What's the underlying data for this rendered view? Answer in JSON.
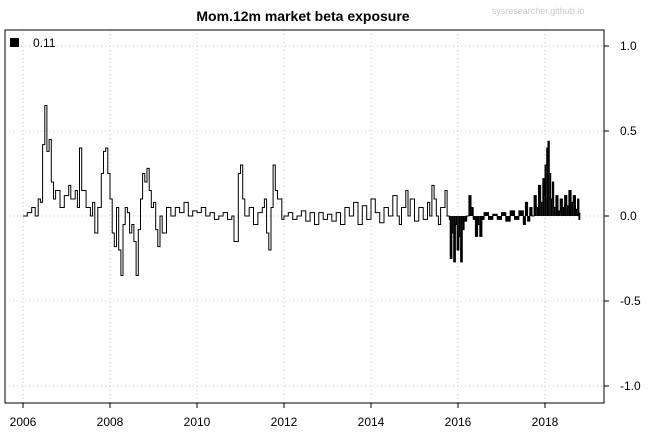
{
  "watermark": "sysresearcher.github.io",
  "chart_data": {
    "type": "line",
    "title": "Mom.12m market beta exposure",
    "xlabel": "",
    "ylabel": "",
    "xlim": [
      2006.0,
      2018.83
    ],
    "ylim": [
      -1.0,
      1.0
    ],
    "x_ticks": [
      2006,
      2008,
      2010,
      2012,
      2014,
      2016,
      2018
    ],
    "x_tick_labels": [
      "2006",
      "2008",
      "2010",
      "2012",
      "2014",
      "2016",
      "2018"
    ],
    "y_ticks": [
      -1.0,
      -0.5,
      0.0,
      0.5,
      1.0
    ],
    "y_tick_labels": [
      "-1.0",
      "-0.5",
      "0.0",
      "0.5",
      "1.0"
    ],
    "y_axis_side": "right",
    "grid": "dotted",
    "legend": {
      "position": "top-left",
      "entries": [
        "0.11"
      ]
    },
    "series": [
      {
        "name": "0.11",
        "style": "step",
        "points": [
          [
            2006.0,
            0.0
          ],
          [
            2006.1,
            0.02
          ],
          [
            2006.2,
            0.05
          ],
          [
            2006.28,
            0.0
          ],
          [
            2006.35,
            0.1
          ],
          [
            2006.4,
            0.08
          ],
          [
            2006.45,
            0.42
          ],
          [
            2006.5,
            0.65
          ],
          [
            2006.55,
            0.38
          ],
          [
            2006.6,
            0.45
          ],
          [
            2006.65,
            0.2
          ],
          [
            2006.7,
            0.1
          ],
          [
            2006.75,
            0.15
          ],
          [
            2006.85,
            0.05
          ],
          [
            2006.95,
            0.12
          ],
          [
            2007.05,
            0.18
          ],
          [
            2007.1,
            0.1
          ],
          [
            2007.2,
            0.15
          ],
          [
            2007.25,
            0.05
          ],
          [
            2007.3,
            0.4
          ],
          [
            2007.35,
            0.15
          ],
          [
            2007.45,
            0.05
          ],
          [
            2007.55,
            0.0
          ],
          [
            2007.6,
            0.08
          ],
          [
            2007.65,
            -0.1
          ],
          [
            2007.72,
            0.05
          ],
          [
            2007.8,
            0.25
          ],
          [
            2007.85,
            0.38
          ],
          [
            2007.9,
            0.4
          ],
          [
            2007.95,
            0.25
          ],
          [
            2008.0,
            0.1
          ],
          [
            2008.05,
            -0.1
          ],
          [
            2008.1,
            -0.18
          ],
          [
            2008.15,
            0.05
          ],
          [
            2008.2,
            -0.2
          ],
          [
            2008.25,
            -0.35
          ],
          [
            2008.3,
            -0.05
          ],
          [
            2008.35,
            0.05
          ],
          [
            2008.4,
            0.02
          ],
          [
            2008.45,
            -0.1
          ],
          [
            2008.5,
            -0.05
          ],
          [
            2008.55,
            -0.15
          ],
          [
            2008.6,
            -0.35
          ],
          [
            2008.65,
            -0.08
          ],
          [
            2008.7,
            0.1
          ],
          [
            2008.75,
            0.25
          ],
          [
            2008.8,
            0.2
          ],
          [
            2008.85,
            0.28
          ],
          [
            2008.9,
            0.15
          ],
          [
            2008.95,
            0.05
          ],
          [
            2009.0,
            0.08
          ],
          [
            2009.05,
            -0.08
          ],
          [
            2009.1,
            -0.18
          ],
          [
            2009.15,
            0.0
          ],
          [
            2009.2,
            -0.1
          ],
          [
            2009.3,
            0.05
          ],
          [
            2009.4,
            0.0
          ],
          [
            2009.5,
            0.05
          ],
          [
            2009.6,
            0.02
          ],
          [
            2009.7,
            0.08
          ],
          [
            2009.8,
            0.0
          ],
          [
            2009.9,
            0.03
          ],
          [
            2010.0,
            0.02
          ],
          [
            2010.1,
            0.05
          ],
          [
            2010.2,
            0.0
          ],
          [
            2010.3,
            0.02
          ],
          [
            2010.4,
            -0.02
          ],
          [
            2010.5,
            0.0
          ],
          [
            2010.6,
            0.02
          ],
          [
            2010.7,
            -0.02
          ],
          [
            2010.8,
            0.0
          ],
          [
            2010.85,
            -0.15
          ],
          [
            2010.95,
            0.25
          ],
          [
            2011.0,
            0.3
          ],
          [
            2011.05,
            0.1
          ],
          [
            2011.1,
            0.0
          ],
          [
            2011.2,
            0.05
          ],
          [
            2011.3,
            -0.05
          ],
          [
            2011.4,
            0.02
          ],
          [
            2011.5,
            0.05
          ],
          [
            2011.55,
            0.1
          ],
          [
            2011.6,
            -0.1
          ],
          [
            2011.65,
            -0.2
          ],
          [
            2011.7,
            0.05
          ],
          [
            2011.75,
            0.3
          ],
          [
            2011.8,
            0.15
          ],
          [
            2011.85,
            0.1
          ],
          [
            2011.95,
            -0.02
          ],
          [
            2012.0,
            0.0
          ],
          [
            2012.1,
            0.02
          ],
          [
            2012.2,
            -0.02
          ],
          [
            2012.3,
            0.0
          ],
          [
            2012.4,
            0.03
          ],
          [
            2012.5,
            -0.03
          ],
          [
            2012.6,
            0.02
          ],
          [
            2012.7,
            -0.05
          ],
          [
            2012.8,
            0.02
          ],
          [
            2012.9,
            -0.02
          ],
          [
            2013.0,
            0.01
          ],
          [
            2013.1,
            -0.03
          ],
          [
            2013.2,
            0.02
          ],
          [
            2013.3,
            -0.05
          ],
          [
            2013.4,
            0.05
          ],
          [
            2013.5,
            0.0
          ],
          [
            2013.6,
            0.08
          ],
          [
            2013.7,
            -0.05
          ],
          [
            2013.8,
            0.06
          ],
          [
            2013.9,
            -0.02
          ],
          [
            2014.0,
            0.1
          ],
          [
            2014.1,
            0.02
          ],
          [
            2014.2,
            -0.04
          ],
          [
            2014.3,
            0.05
          ],
          [
            2014.4,
            0.0
          ],
          [
            2014.5,
            0.12
          ],
          [
            2014.6,
            0.0
          ],
          [
            2014.65,
            -0.05
          ],
          [
            2014.7,
            0.05
          ],
          [
            2014.8,
            0.15
          ],
          [
            2014.85,
            0.0
          ],
          [
            2014.9,
            0.1
          ],
          [
            2015.0,
            -0.03
          ],
          [
            2015.1,
            0.05
          ],
          [
            2015.2,
            -0.02
          ],
          [
            2015.3,
            0.08
          ],
          [
            2015.35,
            0.0
          ],
          [
            2015.4,
            0.18
          ],
          [
            2015.45,
            0.1
          ],
          [
            2015.5,
            0.0
          ],
          [
            2015.55,
            -0.05
          ],
          [
            2015.6,
            0.05
          ],
          [
            2015.7,
            0.15
          ],
          [
            2015.75,
            0.0
          ],
          [
            2015.8,
            -0.02
          ],
          [
            2015.82,
            -0.25
          ],
          [
            2015.86,
            -0.1
          ],
          [
            2015.9,
            -0.27
          ],
          [
            2015.94,
            -0.05
          ],
          [
            2015.98,
            -0.2
          ],
          [
            2016.02,
            -0.12
          ],
          [
            2016.06,
            -0.27
          ],
          [
            2016.1,
            -0.08
          ],
          [
            2016.14,
            -0.03
          ],
          [
            2016.2,
            0.0
          ],
          [
            2016.25,
            0.12
          ],
          [
            2016.3,
            0.05
          ],
          [
            2016.35,
            -0.02
          ],
          [
            2016.4,
            -0.12
          ],
          [
            2016.45,
            -0.05
          ],
          [
            2016.5,
            -0.12
          ],
          [
            2016.55,
            -0.02
          ],
          [
            2016.6,
            0.02
          ],
          [
            2016.7,
            -0.02
          ],
          [
            2016.8,
            0.01
          ],
          [
            2016.9,
            -0.02
          ],
          [
            2017.0,
            0.02
          ],
          [
            2017.1,
            -0.03
          ],
          [
            2017.2,
            0.03
          ],
          [
            2017.3,
            -0.02
          ],
          [
            2017.4,
            0.03
          ],
          [
            2017.5,
            -0.05
          ],
          [
            2017.55,
            0.08
          ],
          [
            2017.6,
            -0.03
          ],
          [
            2017.65,
            0.05
          ],
          [
            2017.7,
            0.0
          ],
          [
            2017.75,
            0.12
          ],
          [
            2017.8,
            0.05
          ],
          [
            2017.85,
            0.18
          ],
          [
            2017.9,
            0.08
          ],
          [
            2017.95,
            0.22
          ],
          [
            2017.98,
            0.12
          ],
          [
            2018.0,
            0.3
          ],
          [
            2018.04,
            0.4
          ],
          [
            2018.07,
            0.44
          ],
          [
            2018.1,
            0.25
          ],
          [
            2018.13,
            0.1
          ],
          [
            2018.17,
            0.2
          ],
          [
            2018.2,
            0.05
          ],
          [
            2018.25,
            0.12
          ],
          [
            2018.3,
            0.03
          ],
          [
            2018.35,
            0.1
          ],
          [
            2018.4,
            0.05
          ],
          [
            2018.45,
            0.12
          ],
          [
            2018.5,
            0.06
          ],
          [
            2018.55,
            0.15
          ],
          [
            2018.6,
            0.08
          ],
          [
            2018.65,
            0.12
          ],
          [
            2018.7,
            0.04
          ],
          [
            2018.75,
            0.1
          ],
          [
            2018.78,
            -0.02
          ],
          [
            2018.8,
            0.02
          ]
        ]
      }
    ]
  }
}
